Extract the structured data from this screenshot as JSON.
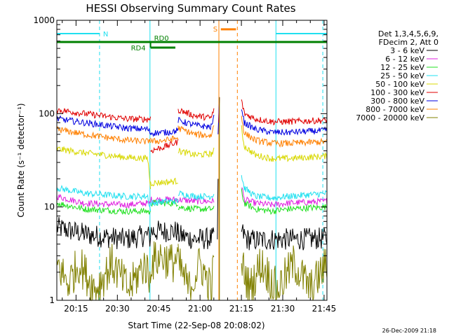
{
  "chart_data": {
    "type": "line",
    "title": "HESSI Observing Summary Count Rates",
    "xlabel": "Start Time (22-Sep-08 20:08:02)",
    "ylabel": "Count Rate (s⁻¹ detector⁻¹)",
    "yscale": "log",
    "ylim": [
      1,
      1000
    ],
    "xlim_minutes": [
      0,
      98
    ],
    "x_start": "20:08:02",
    "x_ticks": [
      "20:15",
      "20:30",
      "20:45",
      "21:00",
      "21:15",
      "21:30",
      "21:45"
    ],
    "y_ticks": [
      "1",
      "10",
      "100",
      "1000"
    ],
    "timestamp": "26-Dec-2009 21:18",
    "legend_header": [
      "Det 1,3,4,5,6,9,",
      "FDecim 2, Att 0"
    ],
    "legend": [
      {
        "name": "3 - 6 keV",
        "color": "#000000"
      },
      {
        "name": "6 - 12 keV",
        "color": "#e020e0"
      },
      {
        "name": "12 - 25 keV",
        "color": "#20e020"
      },
      {
        "name": "25 - 50 keV",
        "color": "#20e0f0"
      },
      {
        "name": "50 - 100 keV",
        "color": "#d8d800"
      },
      {
        "name": "100 - 300 keV",
        "color": "#e00000"
      },
      {
        "name": "300 - 800 keV",
        "color": "#0000e0"
      },
      {
        "name": "800 - 7000 keV",
        "color": "#ff8000"
      },
      {
        "name": "7000 - 20000 keV",
        "color": "#808000"
      }
    ],
    "series": [
      {
        "name": "3 - 6 keV",
        "segments": [
          {
            "x": [
              0,
              12,
              25,
              33,
              34
            ],
            "y": [
              6,
              5,
              4.5,
              5,
              4.5
            ]
          },
          {
            "x": [
              34,
              42,
              44
            ],
            "y": [
              5.5,
              5.5,
              5.5
            ]
          },
          {
            "x": [
              44,
              50,
              56,
              57
            ],
            "y": [
              5,
              4.5,
              4.6,
              4.6
            ]
          },
          {
            "x": [
              67,
              69,
              72,
              78,
              84,
              98
            ],
            "y": [
              5.5,
              4.5,
              4.4,
              4.5,
              4.5,
              4.6
            ]
          }
        ]
      },
      {
        "name": "6 - 12 keV",
        "segments": [
          {
            "x": [
              0,
              10,
              25,
              33,
              34
            ],
            "y": [
              13,
              11,
              10.5,
              11,
              11
            ]
          },
          {
            "x": [
              34,
              40,
              44
            ],
            "y": [
              12,
              12,
              12
            ]
          },
          {
            "x": [
              44,
              50,
              56,
              57
            ],
            "y": [
              12,
              11.5,
              11.5,
              11.5
            ]
          },
          {
            "x": [
              67,
              68,
              72,
              78,
              84,
              98
            ],
            "y": [
              17,
              12,
              11,
              10.5,
              11,
              11.5
            ]
          }
        ]
      },
      {
        "name": "12 - 25 keV",
        "segments": [
          {
            "x": [
              0,
              10,
              25,
              33,
              34
            ],
            "y": [
              11,
              9.5,
              9,
              9,
              8.5
            ]
          },
          {
            "x": [
              34,
              40,
              44
            ],
            "y": [
              11,
              11,
              11
            ]
          },
          {
            "x": [
              44,
              50,
              56,
              57
            ],
            "y": [
              10,
              9.5,
              9.5,
              9.5
            ]
          },
          {
            "x": [
              67,
              68,
              72,
              78,
              84,
              98
            ],
            "y": [
              15,
              11,
              9.5,
              9,
              9.5,
              10
            ]
          }
        ]
      },
      {
        "name": "25 - 50 keV",
        "segments": [
          {
            "x": [
              0,
              10,
              25,
              33,
              34
            ],
            "y": [
              16,
              14,
              13,
              13,
              9
            ]
          },
          {
            "x": [
              34,
              40,
              44
            ],
            "y": [
              11,
              11.5,
              11.5
            ]
          },
          {
            "x": [
              44,
              50,
              56,
              57
            ],
            "y": [
              14,
              13,
              13,
              14
            ]
          },
          {
            "x": [
              67,
              68,
              72,
              78,
              84,
              98
            ],
            "y": [
              22,
              16,
              13,
              12.5,
              13,
              14
            ]
          }
        ]
      },
      {
        "name": "50 - 100 keV",
        "segments": [
          {
            "x": [
              0,
              10,
              25,
              33,
              34
            ],
            "y": [
              42,
              38,
              34,
              33,
              16
            ]
          },
          {
            "x": [
              34,
              40,
              44
            ],
            "y": [
              18,
              18.5,
              19
            ]
          },
          {
            "x": [
              44,
              50,
              56,
              57
            ],
            "y": [
              40,
              36,
              37,
              40
            ]
          },
          {
            "x": [
              67,
              68,
              72,
              78,
              84,
              98
            ],
            "y": [
              70,
              45,
              36,
              33,
              33,
              35
            ]
          }
        ]
      },
      {
        "name": "100 - 300 keV",
        "segments": [
          {
            "x": [
              0,
              10,
              25,
              33,
              34
            ],
            "y": [
              110,
              100,
              88,
              87,
              90
            ]
          },
          {
            "x": [
              34,
              40,
              44
            ],
            "y": [
              40,
              45,
              50
            ]
          },
          {
            "x": [
              44,
              50,
              56,
              57
            ],
            "y": [
              110,
              95,
              90,
              110
            ]
          },
          {
            "x": [
              67,
              68,
              72,
              78,
              84,
              98
            ],
            "y": [
              140,
              100,
              88,
              82,
              82,
              85
            ]
          }
        ]
      },
      {
        "name": "300 - 800 keV",
        "segments": [
          {
            "x": [
              0,
              10,
              25,
              33,
              34
            ],
            "y": [
              88,
              80,
              70,
              68,
              62
            ]
          },
          {
            "x": [
              34,
              40,
              44
            ],
            "y": [
              62,
              63,
              66
            ]
          },
          {
            "x": [
              44,
              50,
              56,
              57
            ],
            "y": [
              85,
              75,
              72,
              90
            ]
          },
          {
            "x": [
              67,
              68,
              72,
              78,
              84,
              98
            ],
            "y": [
              120,
              80,
              68,
              63,
              63,
              66
            ]
          }
        ]
      },
      {
        "name": "800 - 7000 keV",
        "segments": [
          {
            "x": [
              0,
              10,
              25,
              33,
              34
            ],
            "y": [
              68,
              60,
              52,
              50,
              55
            ]
          },
          {
            "x": [
              34,
              40,
              44
            ],
            "y": [
              50,
              52,
              55
            ]
          },
          {
            "x": [
              44,
              50,
              56,
              57
            ],
            "y": [
              70,
              60,
              58,
              75
            ]
          },
          {
            "x": [
              67,
              68,
              72,
              78,
              84,
              98
            ],
            "y": [
              95,
              62,
              52,
              48,
              48,
              50
            ]
          }
        ]
      },
      {
        "name": "7000 - 20000 keV",
        "segments": [
          {
            "x": [
              0,
              4,
              8,
              14,
              20,
              26,
              32,
              34
            ],
            "y": [
              2.5,
              1.5,
              2.5,
              1.3,
              2.5,
              1.3,
              2.5,
              1.5
            ]
          },
          {
            "x": [
              34,
              38,
              42,
              44
            ],
            "y": [
              2.5,
              3,
              2.5,
              3
            ]
          },
          {
            "x": [
              44,
              48,
              52,
              56,
              57
            ],
            "y": [
              2.5,
              1.3,
              2.5,
              1.3,
              2.5
            ]
          },
          {
            "x": [
              67,
              70,
              74,
              80,
              86,
              92,
              98
            ],
            "y": [
              2.5,
              1.3,
              2.5,
              1.3,
              2.5,
              1.3,
              2.5
            ]
          }
        ]
      }
    ],
    "spike": {
      "x": 58.5,
      "y": 150
    },
    "vertical_lines": [
      {
        "x": 0,
        "style": "solid",
        "color": "#20e0f0"
      },
      {
        "x": 15.5,
        "style": "dashed",
        "color": "#20e0f0"
      },
      {
        "x": 33.8,
        "style": "solid",
        "color": "#20e0f0"
      },
      {
        "x": 58.8,
        "style": "solid",
        "color": "#ff8000"
      },
      {
        "x": 65.5,
        "style": "dashed",
        "color": "#ff8000"
      },
      {
        "x": 79.5,
        "style": "solid",
        "color": "#20e0f0"
      },
      {
        "x": 96.5,
        "style": "dashed",
        "color": "#20e0f0"
      }
    ],
    "annotations": {
      "night": {
        "label": "N",
        "color": "#20e0f0",
        "ranges": [
          [
            0,
            15.5
          ],
          [
            79.5,
            98
          ]
        ],
        "y": 720
      },
      "saa": {
        "label": "S",
        "color": "#ff8000",
        "ranges": [
          [
            59.5,
            65
          ]
        ],
        "y": 800
      },
      "rd0": {
        "label": "RD0",
        "color": "#008000",
        "ranges": [
          [
            0,
            98
          ]
        ],
        "y": 585
      },
      "rd4": {
        "label": "RD4",
        "color": "#008000",
        "ranges": [
          [
            34,
            43
          ]
        ],
        "y": 510
      }
    }
  }
}
